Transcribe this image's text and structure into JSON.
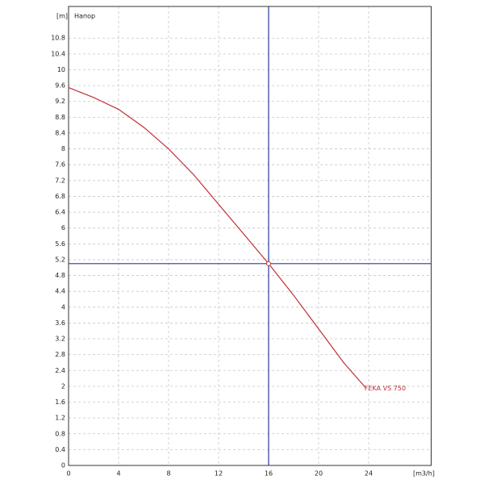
{
  "chart_data": {
    "type": "line",
    "title": "Напор",
    "y_label": "[m]",
    "x_label": "[m3/h]",
    "x": [
      0,
      2,
      4,
      6,
      8,
      10,
      12,
      14,
      16,
      18,
      20,
      22,
      23.8
    ],
    "series": [
      {
        "name": "FEKA VS 750",
        "color": "#c0303a",
        "values": [
          9.55,
          9.3,
          9.0,
          8.55,
          8.0,
          7.35,
          6.6,
          5.85,
          5.1,
          4.3,
          3.45,
          2.6,
          1.95
        ]
      }
    ],
    "operating_point": {
      "x": 16,
      "y": 5.1,
      "color": "#2b3a9a"
    },
    "xlim": [
      0,
      29
    ],
    "xticks": [
      0,
      4,
      8,
      12,
      16,
      20,
      24
    ],
    "ylim": [
      0,
      11.6
    ],
    "yticks": [
      0,
      0.4,
      0.8,
      1.2,
      1.6,
      2,
      2.4,
      2.8,
      3.2,
      3.6,
      4,
      4.4,
      4.8,
      5.2,
      5.6,
      6,
      6.4,
      6.8,
      7.2,
      7.6,
      8,
      8.4,
      8.8,
      9.2,
      9.6,
      10,
      10.4,
      10.8
    ],
    "grid": true
  }
}
